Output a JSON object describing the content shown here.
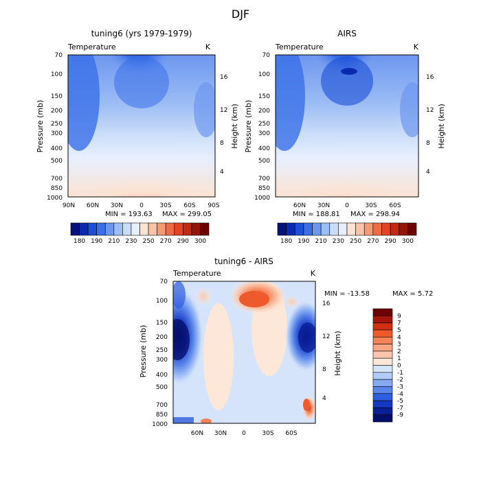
{
  "figure": {
    "title": "DJF"
  },
  "chart_data": [
    {
      "type": "heatmap",
      "title": "tuning6 (yrs 1979-1979)",
      "variable": "Temperature",
      "units": "K",
      "xlabel": "",
      "ylabel": "Pressure (mb)",
      "ylabel_right": "Height (km)",
      "x_ticks": [
        "90N",
        "60N",
        "30N",
        "0",
        "30S",
        "60S",
        "90S"
      ],
      "y_ticks": [
        70,
        100,
        150,
        200,
        250,
        300,
        400,
        500,
        700,
        850,
        1000
      ],
      "right_ticks": [
        4,
        8,
        12,
        16
      ],
      "min_label": "MIN = 193.63",
      "max_label": "MAX = 299.05",
      "min": 193.63,
      "max": 299.05,
      "colorbar_labels": [
        180,
        190,
        210,
        230,
        250,
        270,
        290,
        300
      ],
      "colorbar_levels": [
        180,
        185,
        190,
        200,
        210,
        220,
        230,
        240,
        250,
        260,
        270,
        280,
        290,
        295,
        300
      ]
    },
    {
      "type": "heatmap",
      "title": "AIRS",
      "variable": "Temperature",
      "units": "K",
      "xlabel": "",
      "ylabel": "Pressure (mb)",
      "ylabel_right": "Height (km)",
      "x_ticks": [
        "60N",
        "30N",
        "0",
        "30S",
        "60S"
      ],
      "y_ticks": [
        70,
        100,
        150,
        200,
        250,
        300,
        400,
        500,
        700,
        850,
        1000
      ],
      "right_ticks": [
        4,
        8,
        12,
        16
      ],
      "min_label": "MIN = 188.81",
      "max_label": "MAX = 298.94",
      "min": 188.81,
      "max": 298.94,
      "colorbar_labels": [
        180,
        190,
        210,
        230,
        250,
        270,
        290,
        300
      ],
      "colorbar_levels": [
        180,
        185,
        190,
        200,
        210,
        220,
        230,
        240,
        250,
        260,
        270,
        280,
        290,
        295,
        300
      ]
    },
    {
      "type": "heatmap",
      "title": "tuning6 - AIRS",
      "variable": "Temperature",
      "units": "K",
      "xlabel": "",
      "ylabel": "Pressure (mb)",
      "ylabel_right": "Height (km)",
      "x_ticks": [
        "60N",
        "30N",
        "0",
        "30S",
        "60S"
      ],
      "y_ticks": [
        70,
        100,
        150,
        200,
        250,
        300,
        400,
        500,
        700,
        850,
        1000
      ],
      "right_ticks": [
        4,
        8,
        12,
        16
      ],
      "min_label": "MIN = -13.58",
      "max_label": "MAX =   5.72",
      "min": -13.58,
      "max": 5.72,
      "colorbar_labels": [
        9,
        7,
        5,
        4,
        3,
        2,
        1,
        0,
        -1,
        -2,
        -3,
        -4,
        -5,
        -7,
        -9
      ]
    }
  ],
  "colors": {
    "abs_scale": [
      "#08107a",
      "#0a2ab0",
      "#1a4fd6",
      "#3a6fe8",
      "#6d97ef",
      "#9dbdf5",
      "#c9dcf8",
      "#e7efff",
      "#fbe3d3",
      "#f8c3a6",
      "#f49a75",
      "#ee6b45",
      "#e14522",
      "#c32a12",
      "#94160a",
      "#6c0000"
    ],
    "diff_scale": [
      "#6c0000",
      "#a51409",
      "#d0300f",
      "#ee5a2c",
      "#f58258",
      "#f7a784",
      "#fac7ad",
      "#fde7d8",
      "#d6e4fb",
      "#b2ccf7",
      "#86a9f1",
      "#5a86ea",
      "#2f5de0",
      "#1437c2",
      "#0a1e96",
      "#06106b"
    ]
  }
}
